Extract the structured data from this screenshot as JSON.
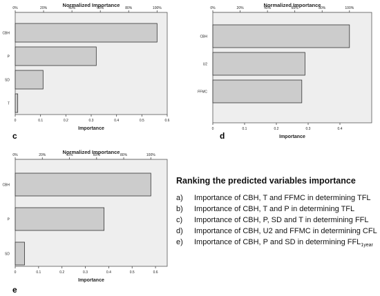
{
  "chart_data": [
    {
      "id": "c",
      "type": "bar",
      "orientation": "horizontal",
      "panel_label": "c",
      "title": "Normalized Importance",
      "xlabel": "Importance",
      "ylabel": "",
      "categories": [
        "CBH",
        "P",
        "SD",
        "T"
      ],
      "values": [
        0.56,
        0.32,
        0.11,
        0.01
      ],
      "xlim": [
        0,
        0.6
      ],
      "ticks": [
        "0",
        "0.1",
        "0.2",
        "0.3",
        "0.4",
        "0.5",
        "0.6"
      ],
      "top_ticks": [
        "0%",
        "20%",
        "40%",
        "60%",
        "80%",
        "100%"
      ],
      "bar_color": "#cccccc",
      "plot_bg": "#eeeeee"
    },
    {
      "id": "d",
      "type": "bar",
      "orientation": "horizontal",
      "panel_label": "d",
      "title": "Normalized Importance",
      "xlabel": "Importance",
      "ylabel": "",
      "categories": [
        "CBH",
        "U2",
        "FFMC"
      ],
      "values": [
        0.43,
        0.29,
        0.28
      ],
      "xlim": [
        0,
        0.5
      ],
      "ticks": [
        "0",
        "0.1",
        "0.2",
        "0.3",
        "0.4"
      ],
      "top_ticks": [
        "0%",
        "20%",
        "40%",
        "60%",
        "80%",
        "100%"
      ],
      "bar_color": "#cccccc",
      "plot_bg": "#eeeeee"
    },
    {
      "id": "e",
      "type": "bar",
      "orientation": "horizontal",
      "panel_label": "e",
      "title": "Normalized Importance",
      "xlabel": "Importance",
      "ylabel": "",
      "categories": [
        "CBH",
        "P",
        "SD"
      ],
      "values": [
        0.58,
        0.38,
        0.04
      ],
      "xlim": [
        0,
        0.65
      ],
      "ticks": [
        "0",
        "0.1",
        "0.2",
        "0.3",
        "0.4",
        "0.5",
        "0.6"
      ],
      "top_ticks": [
        "0%",
        "20%",
        "40%",
        "60%",
        "80%",
        "100%"
      ],
      "bar_color": "#cccccc",
      "plot_bg": "#eeeeee"
    }
  ],
  "legend": {
    "title": "Ranking the predicted variables importance",
    "items": [
      {
        "key": "a)",
        "text": "Importance of CBH, T and FFMC in determining TFL",
        "sub": ""
      },
      {
        "key": "b)",
        "text": "Importance of CBH, T and P in determining TFL",
        "sub": ""
      },
      {
        "key": "c)",
        "text": "Importance of CBH, P, SD and T in determining FFL",
        "sub": ""
      },
      {
        "key": "d)",
        "text": "Importance of CBH, U2 and FFMC in determining CFL",
        "sub": ""
      },
      {
        "key": "e)",
        "text": "Importance of CBH, P and SD in determining FFL",
        "sub": "1year"
      }
    ]
  }
}
